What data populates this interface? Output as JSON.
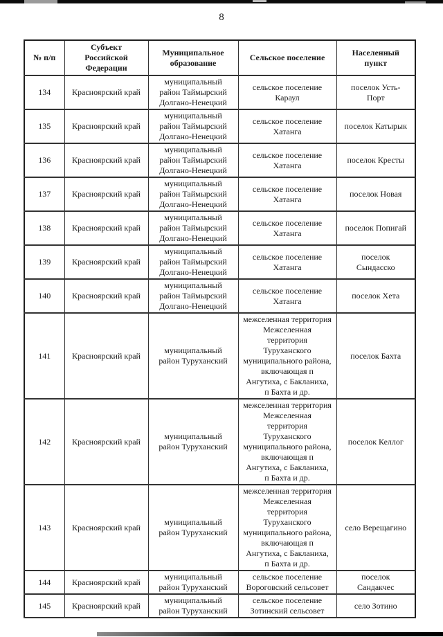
{
  "page": {
    "number": "8"
  },
  "table": {
    "headers": [
      "№ п/п",
      "Субъект\nРоссийской\nФедерации",
      "Муниципальное\nобразование",
      "Сельское поселение",
      "Населенный\nпункт"
    ],
    "rows": [
      {
        "num": "134",
        "subject": "Красноярский край",
        "municipality": "муниципальный\nрайон Таймырский\nДолгано-Ненецкий",
        "settlement": "сельское поселение\nКараул",
        "locality": "поселок Усть-\nПорт"
      },
      {
        "num": "135",
        "subject": "Красноярский край",
        "municipality": "муниципальный\nрайон Таймырский\nДолгано-Ненецкий",
        "settlement": "сельское поселение\nХатанга",
        "locality": "поселок Катырык"
      },
      {
        "num": "136",
        "subject": "Красноярский край",
        "municipality": "муниципальный\nрайон Таймырский\nДолгано-Ненецкий",
        "settlement": "сельское поселение\nХатанга",
        "locality": "поселок Кресты"
      },
      {
        "num": "137",
        "subject": "Красноярский край",
        "municipality": "муниципальный\nрайон Таймырский\nДолгано-Ненецкий",
        "settlement": "сельское поселение\nХатанга",
        "locality": "поселок Новая"
      },
      {
        "num": "138",
        "subject": "Красноярский край",
        "municipality": "муниципальный\nрайон Таймырский\nДолгано-Ненецкий",
        "settlement": "сельское поселение\nХатанга",
        "locality": "поселок Попигай"
      },
      {
        "num": "139",
        "subject": "Красноярский край",
        "municipality": "муниципальный\nрайон Таймырский\nДолгано-Ненецкий",
        "settlement": "сельское поселение\nХатанга",
        "locality": "поселок\nСындасско"
      },
      {
        "num": "140",
        "subject": "Красноярский край",
        "municipality": "муниципальный\nрайон Таймырский\nДолгано-Ненецкий",
        "settlement": "сельское поселение\nХатанга",
        "locality": "поселок Хета"
      },
      {
        "num": "141",
        "subject": "Красноярский край",
        "municipality": "муниципальный\nрайон Туруханский",
        "settlement": "межселенная территория\nМежселенная\nтерритория\nТуруханского\nмуниципального района,\nвключающая п\nАнгутиха, с Бакланиха,\nп Бахта и др.",
        "locality": "поселок Бахта"
      },
      {
        "num": "142",
        "subject": "Красноярский край",
        "municipality": "муниципальный\nрайон Туруханский",
        "settlement": "межселенная территория\nМежселенная\nтерритория\nТуруханского\nмуниципального района,\nвключающая п\nАнгутиха, с Бакланиха,\nп Бахта и др.",
        "locality": "поселок Келлог"
      },
      {
        "num": "143",
        "subject": "Красноярский край",
        "municipality": "муниципальный\nрайон Туруханский",
        "settlement": "межселенная территория\nМежселенная\nтерритория\nТуруханского\nмуниципального района,\nвключающая п\nАнгутиха, с Бакланиха,\nп Бахта и др.",
        "locality": "село Верещагино"
      },
      {
        "num": "144",
        "subject": "Красноярский край",
        "municipality": "муниципальный\nрайон Туруханский",
        "settlement": "сельское поселение\nВороговский сельсовет",
        "locality": "поселок\nСандакчес"
      },
      {
        "num": "145",
        "subject": "Красноярский край",
        "municipality": "муниципальный\nрайон Туруханский",
        "settlement": "сельское поселение\nЗотинский сельсовет",
        "locality": "село Зотино"
      }
    ]
  },
  "artifact_colors": {
    "scan_bar": "#0c0c0c",
    "text": "#1b1b1b",
    "border": "#333333"
  }
}
